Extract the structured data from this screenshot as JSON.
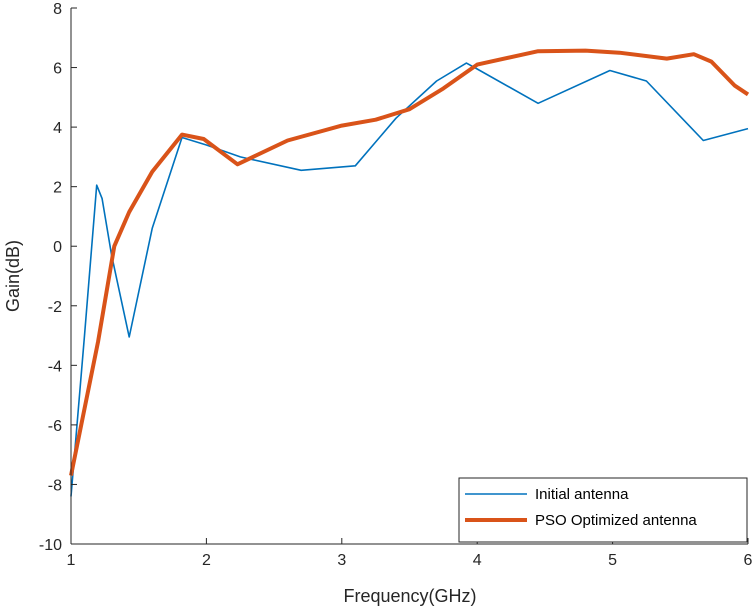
{
  "chart_data": {
    "type": "line",
    "title": "",
    "xlabel": "Frequency(GHz)",
    "ylabel": "Gain(dB)",
    "xlim": [
      1,
      6
    ],
    "ylim": [
      -10,
      8
    ],
    "xticks": [
      "1",
      "2",
      "3",
      "4",
      "5",
      "6"
    ],
    "yticks": [
      "-10",
      "-8",
      "-6",
      "-4",
      "-2",
      "0",
      "2",
      "4",
      "6",
      "8"
    ],
    "grid": false,
    "legend_position": "bottom-right",
    "series": [
      {
        "name": "Initial antenna",
        "color": "#0072BD",
        "x": [
          1.0,
          1.1,
          1.19,
          1.23,
          1.3,
          1.43,
          1.6,
          1.82,
          2.0,
          2.25,
          2.7,
          3.1,
          3.4,
          3.7,
          3.92,
          4.0,
          4.45,
          4.98,
          5.25,
          5.67,
          6.0
        ],
        "y": [
          -8.4,
          -3.0,
          2.05,
          1.6,
          -0.3,
          -3.05,
          0.6,
          3.65,
          3.4,
          3.0,
          2.55,
          2.7,
          4.3,
          5.55,
          6.15,
          5.95,
          4.8,
          5.9,
          5.55,
          3.55,
          3.95
        ]
      },
      {
        "name": "PSO Optimized antenna",
        "color": "#D95319",
        "x": [
          1.0,
          1.2,
          1.32,
          1.43,
          1.6,
          1.82,
          1.98,
          2.23,
          2.6,
          3.0,
          3.25,
          3.5,
          3.75,
          4.0,
          4.45,
          4.8,
          5.05,
          5.4,
          5.6,
          5.73,
          5.9,
          6.0
        ],
        "y": [
          -7.7,
          -3.2,
          0.0,
          1.15,
          2.5,
          3.75,
          3.6,
          2.75,
          3.55,
          4.05,
          4.25,
          4.6,
          5.3,
          6.1,
          6.55,
          6.57,
          6.5,
          6.3,
          6.45,
          6.2,
          5.4,
          5.1
        ]
      }
    ]
  }
}
